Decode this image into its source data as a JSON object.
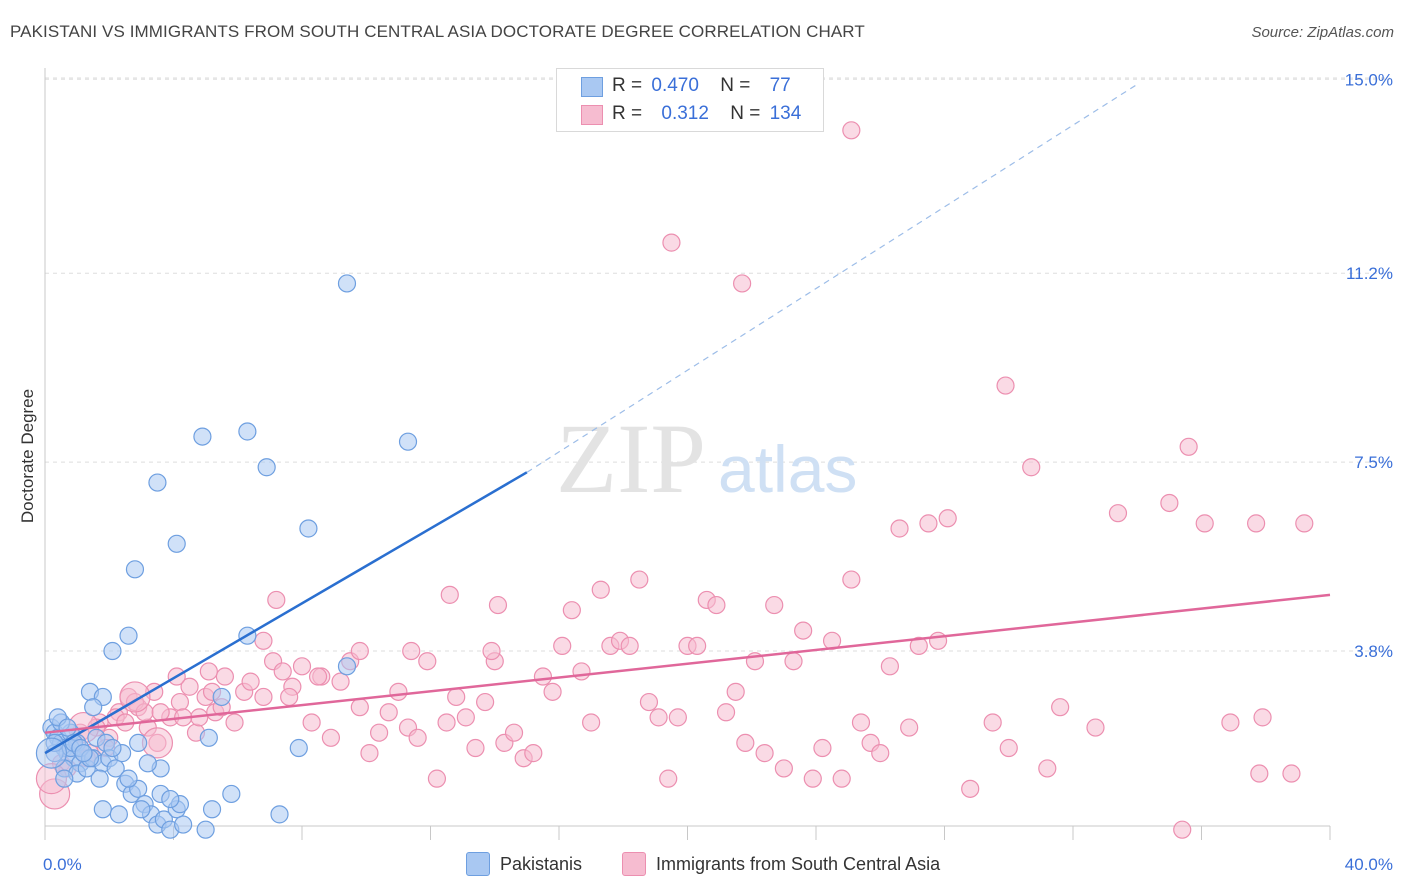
{
  "title": "PAKISTANI VS IMMIGRANTS FROM SOUTH CENTRAL ASIA DOCTORATE DEGREE CORRELATION CHART",
  "source": "Source: ZipAtlas.com",
  "watermark": {
    "zip": "ZIP",
    "atlas": "atlas"
  },
  "colors": {
    "blue_fill": "#a9c8f2",
    "blue_stroke": "#6e9fe0",
    "blue_line": "#2a6fd0",
    "pink_fill": "#f6bcd0",
    "pink_stroke": "#ec8fb0",
    "pink_line": "#e0679a",
    "axis_label": "#3a6fd8",
    "grid": "#dddddd"
  },
  "legend": {
    "rows": [
      {
        "r_label": "R =",
        "r_value": "0.470",
        "n_label": "N =",
        "n_value": "77"
      },
      {
        "r_label": "R =",
        "r_value": "0.312",
        "n_label": "N =",
        "n_value": "134"
      }
    ]
  },
  "chart_data": {
    "type": "scatter",
    "title": "PAKISTANI VS IMMIGRANTS FROM SOUTH CENTRAL ASIA DOCTORATE DEGREE CORRELATION CHART",
    "xlabel": "",
    "ylabel": "Doctorate Degree",
    "xlim": [
      0,
      40
    ],
    "ylim": [
      0,
      15.5
    ],
    "x_tick_labels": [
      "0.0%",
      "40.0%"
    ],
    "y_ticks": [
      3.8,
      7.5,
      11.2,
      15.0
    ],
    "y_tick_labels": [
      "3.8%",
      "7.5%",
      "11.2%",
      "15.0%"
    ],
    "grid": true,
    "legend_position": "top-center",
    "series": [
      {
        "name": "Pakistanis",
        "color": "blue",
        "r": 0.47,
        "n": 77,
        "trend": {
          "x": [
            0,
            15
          ],
          "y": [
            1.8,
            7.3
          ],
          "dashed_to": [
            34,
            14.9
          ]
        },
        "points": [
          [
            0.2,
            2.3
          ],
          [
            0.3,
            2.2
          ],
          [
            0.4,
            2.1
          ],
          [
            0.5,
            2.0
          ],
          [
            0.6,
            1.9
          ],
          [
            0.7,
            1.8
          ],
          [
            0.8,
            2.2
          ],
          [
            0.9,
            1.7
          ],
          [
            1.0,
            2.0
          ],
          [
            1.1,
            1.6
          ],
          [
            0.3,
            1.8
          ],
          [
            0.5,
            2.4
          ],
          [
            0.6,
            1.5
          ],
          [
            0.8,
            1.9
          ],
          [
            1.0,
            1.4
          ],
          [
            1.2,
            1.8
          ],
          [
            1.3,
            1.5
          ],
          [
            1.5,
            1.7
          ],
          [
            1.6,
            2.1
          ],
          [
            1.8,
            1.6
          ],
          [
            0.4,
            2.5
          ],
          [
            0.7,
            2.3
          ],
          [
            0.9,
            2.0
          ],
          [
            1.1,
            1.9
          ],
          [
            1.4,
            1.7
          ],
          [
            1.7,
            1.3
          ],
          [
            1.9,
            2.0
          ],
          [
            2.0,
            1.7
          ],
          [
            2.2,
            1.5
          ],
          [
            2.4,
            1.8
          ],
          [
            2.5,
            1.2
          ],
          [
            2.7,
            1.0
          ],
          [
            2.9,
            1.1
          ],
          [
            3.1,
            0.8
          ],
          [
            3.3,
            0.6
          ],
          [
            3.5,
            0.4
          ],
          [
            3.7,
            0.5
          ],
          [
            3.9,
            0.3
          ],
          [
            4.1,
            0.7
          ],
          [
            4.3,
            0.4
          ],
          [
            1.8,
            0.7
          ],
          [
            2.3,
            0.6
          ],
          [
            2.6,
            1.3
          ],
          [
            3.0,
            0.7
          ],
          [
            3.6,
            1.0
          ],
          [
            4.2,
            0.8
          ],
          [
            5.2,
            0.7
          ],
          [
            5.0,
            0.3
          ],
          [
            5.8,
            1.0
          ],
          [
            7.3,
            0.6
          ],
          [
            1.4,
            3.0
          ],
          [
            1.8,
            2.9
          ],
          [
            2.1,
            3.8
          ],
          [
            2.6,
            4.1
          ],
          [
            2.8,
            5.4
          ],
          [
            3.5,
            7.1
          ],
          [
            4.1,
            5.9
          ],
          [
            4.9,
            8.0
          ],
          [
            6.3,
            8.1
          ],
          [
            6.9,
            7.4
          ],
          [
            8.2,
            6.2
          ],
          [
            9.4,
            11.0
          ],
          [
            11.3,
            7.9
          ],
          [
            6.3,
            4.1
          ],
          [
            5.5,
            2.9
          ],
          [
            5.1,
            2.1
          ],
          [
            7.9,
            1.9
          ],
          [
            9.4,
            3.5
          ],
          [
            3.6,
            1.5
          ],
          [
            2.1,
            1.9
          ],
          [
            1.2,
            1.8
          ],
          [
            0.6,
            1.3
          ],
          [
            1.5,
            2.7
          ],
          [
            2.9,
            2.0
          ],
          [
            3.2,
            1.6
          ],
          [
            3.9,
            0.9
          ],
          [
            0.3,
            2.0
          ]
        ],
        "large_points": [
          [
            0.2,
            1.8
          ]
        ]
      },
      {
        "name": "Immigrants from South Central Asia",
        "color": "pink",
        "r": 0.312,
        "n": 134,
        "trend": {
          "x": [
            0,
            40
          ],
          "y": [
            2.2,
            4.9
          ]
        },
        "points": [
          [
            0.5,
            1.6
          ],
          [
            0.8,
            1.9
          ],
          [
            1.1,
            2.2
          ],
          [
            1.4,
            1.8
          ],
          [
            1.7,
            2.4
          ],
          [
            2.0,
            2.1
          ],
          [
            2.3,
            2.6
          ],
          [
            2.6,
            2.9
          ],
          [
            2.9,
            2.7
          ],
          [
            3.2,
            2.3
          ],
          [
            0.7,
            1.5
          ],
          [
            1.0,
            2.0
          ],
          [
            1.3,
            1.7
          ],
          [
            1.6,
            2.3
          ],
          [
            1.9,
            1.9
          ],
          [
            2.2,
            2.5
          ],
          [
            2.5,
            2.4
          ],
          [
            2.8,
            2.8
          ],
          [
            3.1,
            2.6
          ],
          [
            3.4,
            3.0
          ],
          [
            3.5,
            2.0
          ],
          [
            3.9,
            2.5
          ],
          [
            4.2,
            2.8
          ],
          [
            4.5,
            3.1
          ],
          [
            4.7,
            2.2
          ],
          [
            5.0,
            2.9
          ],
          [
            5.3,
            2.6
          ],
          [
            5.6,
            3.3
          ],
          [
            5.9,
            2.4
          ],
          [
            6.2,
            3.0
          ],
          [
            4.1,
            3.3
          ],
          [
            4.8,
            2.5
          ],
          [
            5.2,
            3.0
          ],
          [
            5.5,
            2.7
          ],
          [
            6.4,
            3.2
          ],
          [
            6.8,
            2.9
          ],
          [
            7.1,
            3.6
          ],
          [
            7.4,
            3.4
          ],
          [
            7.7,
            3.1
          ],
          [
            8.0,
            3.5
          ],
          [
            8.3,
            2.4
          ],
          [
            8.6,
            3.3
          ],
          [
            8.9,
            2.1
          ],
          [
            9.2,
            3.2
          ],
          [
            9.5,
            3.6
          ],
          [
            9.8,
            2.7
          ],
          [
            10.1,
            1.8
          ],
          [
            10.4,
            2.2
          ],
          [
            10.7,
            2.6
          ],
          [
            11.0,
            3.0
          ],
          [
            11.3,
            2.3
          ],
          [
            11.6,
            2.1
          ],
          [
            11.9,
            3.6
          ],
          [
            12.2,
            1.3
          ],
          [
            12.5,
            2.4
          ],
          [
            12.8,
            2.9
          ],
          [
            13.1,
            2.5
          ],
          [
            13.4,
            1.9
          ],
          [
            13.7,
            2.8
          ],
          [
            14.0,
            3.6
          ],
          [
            14.3,
            2.0
          ],
          [
            14.6,
            2.2
          ],
          [
            14.9,
            1.7
          ],
          [
            15.2,
            1.8
          ],
          [
            15.5,
            3.3
          ],
          [
            15.8,
            3.0
          ],
          [
            16.1,
            3.9
          ],
          [
            16.4,
            4.6
          ],
          [
            16.7,
            3.4
          ],
          [
            17.0,
            2.4
          ],
          [
            17.3,
            5.0
          ],
          [
            17.6,
            3.9
          ],
          [
            17.9,
            4.0
          ],
          [
            18.2,
            3.9
          ],
          [
            18.5,
            5.2
          ],
          [
            18.8,
            2.8
          ],
          [
            19.1,
            2.5
          ],
          [
            19.4,
            1.3
          ],
          [
            19.7,
            2.5
          ],
          [
            20.0,
            3.9
          ],
          [
            20.3,
            3.9
          ],
          [
            20.6,
            4.8
          ],
          [
            20.9,
            4.7
          ],
          [
            21.2,
            2.6
          ],
          [
            21.5,
            3.0
          ],
          [
            21.8,
            2.0
          ],
          [
            22.1,
            3.6
          ],
          [
            22.4,
            1.8
          ],
          [
            22.7,
            4.7
          ],
          [
            23.0,
            1.5
          ],
          [
            23.3,
            3.6
          ],
          [
            23.6,
            4.2
          ],
          [
            23.9,
            1.3
          ],
          [
            24.2,
            1.9
          ],
          [
            24.5,
            4.0
          ],
          [
            24.8,
            1.3
          ],
          [
            25.1,
            5.2
          ],
          [
            25.4,
            2.4
          ],
          [
            25.7,
            2.0
          ],
          [
            26.0,
            1.8
          ],
          [
            26.3,
            3.5
          ],
          [
            26.6,
            6.2
          ],
          [
            26.9,
            2.3
          ],
          [
            27.2,
            3.9
          ],
          [
            27.5,
            6.3
          ],
          [
            27.8,
            4.0
          ],
          [
            28.1,
            6.4
          ],
          [
            7.2,
            4.8
          ],
          [
            12.6,
            4.9
          ],
          [
            14.1,
            4.7
          ],
          [
            13.9,
            3.8
          ],
          [
            11.4,
            3.8
          ],
          [
            9.8,
            3.8
          ],
          [
            8.5,
            3.3
          ],
          [
            7.6,
            2.9
          ],
          [
            6.8,
            4.0
          ],
          [
            5.1,
            3.4
          ],
          [
            4.3,
            2.5
          ],
          [
            3.6,
            2.6
          ],
          [
            30.7,
            7.4
          ],
          [
            31.2,
            1.5
          ],
          [
            30.0,
            1.9
          ],
          [
            29.5,
            2.4
          ],
          [
            28.8,
            1.1
          ],
          [
            29.9,
            9.0
          ],
          [
            31.6,
            2.7
          ],
          [
            32.7,
            2.3
          ],
          [
            33.4,
            6.5
          ],
          [
            35.0,
            6.7
          ],
          [
            35.6,
            7.8
          ],
          [
            36.1,
            6.3
          ],
          [
            36.9,
            2.4
          ],
          [
            37.7,
            6.3
          ],
          [
            39.2,
            6.3
          ],
          [
            37.8,
            1.4
          ],
          [
            37.9,
            2.5
          ],
          [
            38.8,
            1.4
          ],
          [
            35.4,
            0.3
          ]
        ],
        "outliers": [
          [
            25.1,
            14.0
          ],
          [
            19.5,
            11.8
          ],
          [
            21.7,
            11.0
          ]
        ],
        "large_points": [
          [
            0.3,
            1.0
          ],
          [
            0.2,
            1.3
          ],
          [
            1.2,
            2.3
          ],
          [
            3.5,
            2.0
          ],
          [
            2.8,
            2.9
          ]
        ]
      }
    ]
  },
  "bottom_legend": {
    "items": [
      {
        "label": "Pakistanis"
      },
      {
        "label": "Immigrants from South Central Asia"
      }
    ]
  }
}
